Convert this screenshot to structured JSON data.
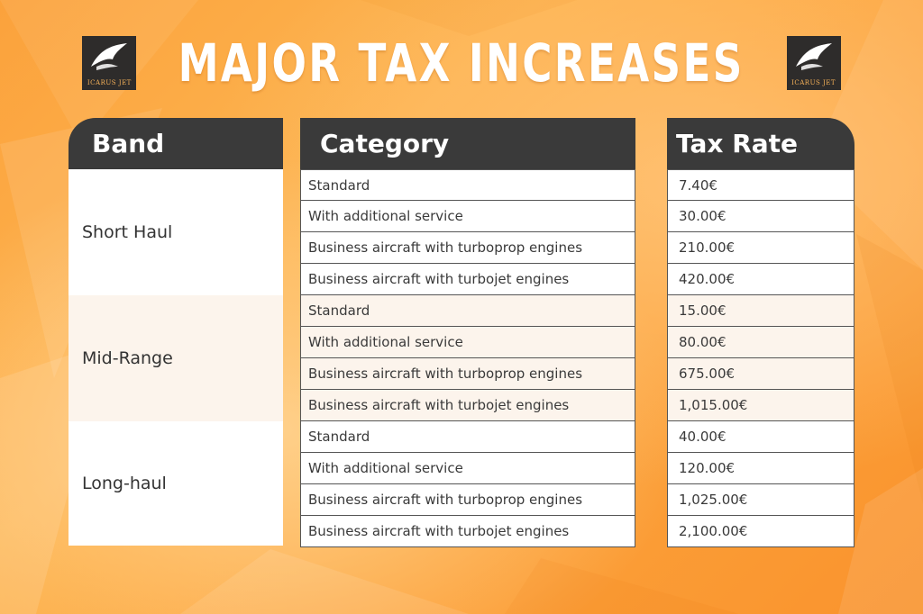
{
  "title": "MAJOR TAX INCREASES",
  "logo": {
    "text": "ICARUS JET"
  },
  "columns": {
    "band": "Band",
    "category": "Category",
    "tax_rate": "Tax Rate"
  },
  "bands": [
    {
      "name": "Short Haul",
      "rows": [
        {
          "category": "Standard",
          "rate": "7.40€"
        },
        {
          "category": "With additional service",
          "rate": "30.00€"
        },
        {
          "category": "Business aircraft with turboprop engines",
          "rate": "210.00€"
        },
        {
          "category": "Business aircraft with turbojet engines",
          "rate": "420.00€"
        }
      ]
    },
    {
      "name": "Mid-Range",
      "rows": [
        {
          "category": "Standard",
          "rate": "15.00€"
        },
        {
          "category": "With additional service",
          "rate": "80.00€"
        },
        {
          "category": "Business aircraft with turboprop engines",
          "rate": "675.00€"
        },
        {
          "category": "Business aircraft with turbojet engines",
          "rate": "1,015.00€"
        }
      ]
    },
    {
      "name": "Long-haul",
      "rows": [
        {
          "category": "Standard",
          "rate": "40.00€"
        },
        {
          "category": "With additional service",
          "rate": "120.00€"
        },
        {
          "category": "Business aircraft with turboprop engines",
          "rate": "1,025.00€"
        },
        {
          "category": "Business aircraft with turbojet engines",
          "rate": "2,100.00€"
        }
      ]
    }
  ],
  "colors": {
    "header": "#3a3a3a",
    "background": "#fca13a",
    "text": "#333333",
    "title": "#ffffff"
  }
}
